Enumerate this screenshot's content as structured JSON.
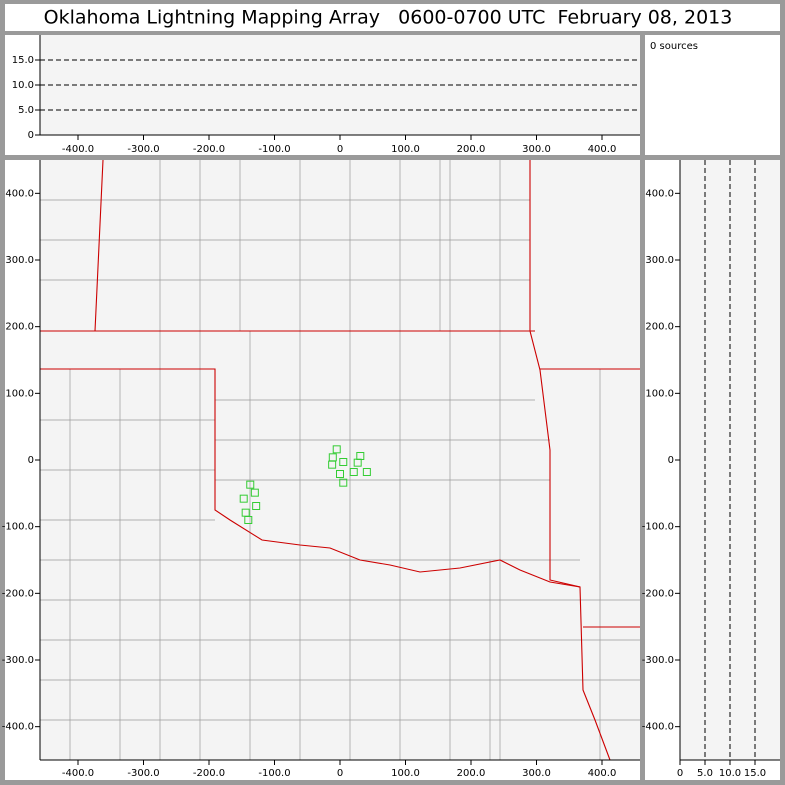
{
  "title": "Oklahoma Lightning Mapping Array   0600-0700 UTC  February 08, 2013",
  "chart_data": [
    {
      "type": "histogram",
      "annotation": "0 sources",
      "xlim": [
        -458,
        458
      ],
      "ylim": [
        0,
        20
      ],
      "xticks": [
        {
          "value": -400,
          "label": "-400.0"
        },
        {
          "value": -300,
          "label": "-300.0"
        },
        {
          "value": -200,
          "label": "-200.0"
        },
        {
          "value": -100,
          "label": "-100.0"
        },
        0,
        {
          "value": 100,
          "label": "100.0"
        },
        {
          "value": 200,
          "label": "200.0"
        },
        {
          "value": 300,
          "label": "300.0"
        },
        {
          "value": 400,
          "label": "400.0"
        }
      ],
      "yticks": [
        0,
        {
          "value": 5,
          "label": "5.0"
        },
        {
          "value": 10,
          "label": "10.0"
        },
        {
          "value": 15,
          "label": "15.0"
        }
      ],
      "grid": "y"
    },
    {
      "type": "scatter",
      "color": "#33cc33",
      "x": [
        -5,
        -11,
        31,
        5,
        -12,
        27,
        21,
        41,
        0,
        5,
        -137,
        -130,
        -147,
        -128,
        -144,
        -140
      ],
      "y": [
        16,
        4,
        6,
        -3,
        -7,
        -4,
        -18,
        -18,
        -21,
        -34,
        -37,
        -49,
        -58,
        -69,
        -79,
        -90
      ],
      "xlim": [
        -458,
        458
      ],
      "ylim": [
        -450,
        450
      ],
      "xticks": [
        {
          "value": -400,
          "label": "-400.0"
        },
        {
          "value": -300,
          "label": "-300.0"
        },
        {
          "value": -200,
          "label": "-200.0"
        },
        {
          "value": -100,
          "label": "-100.0"
        },
        0,
        {
          "value": 100,
          "label": "100.0"
        },
        {
          "value": 200,
          "label": "200.0"
        },
        {
          "value": 300,
          "label": "300.0"
        },
        {
          "value": 400,
          "label": "400.0"
        }
      ],
      "yticks": [
        {
          "value": 400,
          "label": "400.0"
        },
        {
          "value": 300,
          "label": "300.0"
        },
        {
          "value": 200,
          "label": "200.0"
        },
        {
          "value": 100,
          "label": "100.0"
        },
        0,
        {
          "value": -100,
          "label": "-100.0"
        },
        {
          "value": -200,
          "label": "-200.0"
        },
        {
          "value": -300,
          "label": "-300.0"
        },
        {
          "value": -400,
          "label": "-400.0"
        }
      ]
    },
    {
      "type": "histogram",
      "xlim": [
        0,
        20
      ],
      "ylim": [
        -450,
        450
      ],
      "xticks": [
        0,
        {
          "value": 5,
          "label": "5.0"
        },
        {
          "value": 10,
          "label": "10.0"
        },
        {
          "value": 15,
          "label": "15.0"
        }
      ],
      "yticks": [
        {
          "value": 400,
          "label": "400.0"
        },
        {
          "value": 300,
          "label": "300.0"
        },
        {
          "value": 200,
          "label": "200.0"
        },
        {
          "value": 100,
          "label": "100.0"
        },
        0,
        {
          "value": -100,
          "label": "-100.0"
        },
        {
          "value": -200,
          "label": "-200.0"
        },
        {
          "value": -300,
          "label": "-300.0"
        },
        {
          "value": -400,
          "label": "-400.0"
        }
      ],
      "grid": "x"
    }
  ]
}
